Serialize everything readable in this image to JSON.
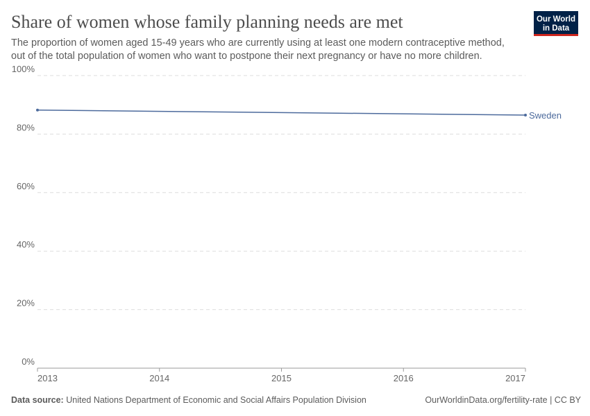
{
  "chart_data": {
    "type": "line",
    "title": "Share of women whose family planning needs are met",
    "subtitle": [
      "The proportion of women aged 15-49 years who are currently using at least one modern contraceptive method,",
      "out of the total population of women who want to postpone their next pregnancy or have no more children."
    ],
    "x": [
      2013,
      2017
    ],
    "series": [
      {
        "name": "Sweden",
        "color": "#4c6a9c",
        "values": [
          88.2,
          86.5
        ]
      }
    ],
    "xlim": [
      2013,
      2017
    ],
    "xticks": [
      2013,
      2014,
      2015,
      2016,
      2017
    ],
    "ylim": [
      0,
      100
    ],
    "yticks": [
      {
        "value": 0,
        "label": "0%"
      },
      {
        "value": 20,
        "label": "20%"
      },
      {
        "value": 40,
        "label": "40%"
      },
      {
        "value": 60,
        "label": "60%"
      },
      {
        "value": 80,
        "label": "80%"
      },
      {
        "value": 100,
        "label": "100%"
      }
    ],
    "grid": true,
    "source_label": "Data source:",
    "source": "United Nations Department of Economic and Social Affairs Population Division",
    "footer_right": "OurWorldinData.org/fertility-rate | CC BY",
    "logo": [
      "Our World",
      "in Data"
    ]
  }
}
